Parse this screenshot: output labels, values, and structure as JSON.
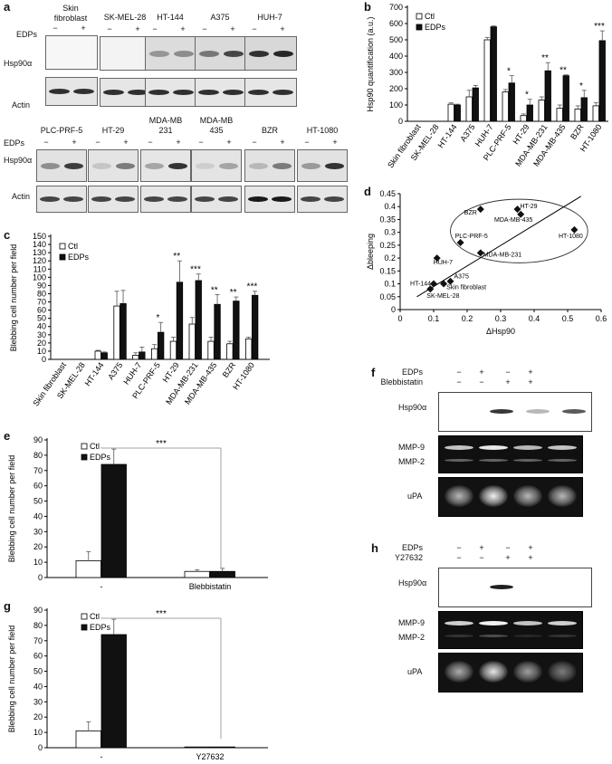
{
  "panel_a": {
    "letter": "a",
    "edps_label": "EDPs",
    "row_labels": {
      "hsp": "Hsp90α",
      "actin": "Actin"
    },
    "minus": "−",
    "plus": "+",
    "top_cells": [
      "Skin\nfibroblast",
      "SK-MEL-28",
      "HT-144",
      "A375",
      "HUH-7"
    ],
    "bottom_cells": [
      "PLC-PRF-5",
      "HT-29",
      "MDA-MB\n231",
      "MDA-MB\n435",
      "BZR",
      "HT-1080"
    ]
  },
  "panel_b": {
    "letter": "b",
    "ylabel": "Hsp90 quantification (a.u.)",
    "legend": [
      "Ctl",
      "EDPs"
    ]
  },
  "panel_c": {
    "letter": "c",
    "ylabel": "Blebbing cell number per field",
    "legend": [
      "Ctl",
      "EDPs"
    ]
  },
  "panel_d": {
    "letter": "d",
    "xlabel": "ΔHsp90",
    "ylabel": "Δbleeping"
  },
  "panel_e": {
    "letter": "e",
    "ylabel": "Blebbing cell number per field",
    "legend": [
      "Ctl",
      "EDPs"
    ],
    "sig": "***"
  },
  "panel_f": {
    "letter": "f",
    "treat_rows": [
      "EDPs",
      "Blebbistatin"
    ],
    "signs": [
      [
        "−",
        "+",
        "−",
        "+"
      ],
      [
        "−",
        "−",
        "+",
        "+"
      ]
    ],
    "blot_labels": [
      "Hsp90α",
      "MMP-9",
      "MMP-2",
      "uPA"
    ]
  },
  "panel_g": {
    "letter": "g",
    "ylabel": "Blebbing cell number per field",
    "legend": [
      "Ctl",
      "EDPs"
    ],
    "sig": "***"
  },
  "panel_h": {
    "letter": "h",
    "treat_rows": [
      "EDPs",
      "Y27632"
    ],
    "signs": [
      [
        "−",
        "+",
        "−",
        "+"
      ],
      [
        "−",
        "−",
        "+",
        "+"
      ]
    ],
    "blot_labels": [
      "Hsp90α",
      "MMP-9",
      "MMP-2",
      "uPA"
    ]
  },
  "chart_data": [
    {
      "panel": "b",
      "type": "bar",
      "title": "",
      "categories": [
        "Skin fibroblast",
        "SK-MEL-28",
        "HT-144",
        "A375",
        "HUH-7",
        "PLC-PRF-5",
        "HT-29",
        "MDA-MB-231",
        "MDA-MB-435",
        "BZR",
        "HT-1080"
      ],
      "series": [
        {
          "name": "Ctl",
          "values": [
            0,
            0,
            105,
            150,
            500,
            180,
            35,
            130,
            80,
            75,
            95
          ],
          "errors": [
            0,
            0,
            8,
            40,
            15,
            15,
            10,
            20,
            20,
            20,
            20
          ]
        },
        {
          "name": "EDPs",
          "values": [
            0,
            0,
            100,
            205,
            580,
            235,
            100,
            310,
            280,
            145,
            495
          ],
          "errors": [
            0,
            0,
            5,
            15,
            5,
            45,
            35,
            50,
            5,
            45,
            60
          ]
        }
      ],
      "significance": [
        "",
        "",
        "",
        "",
        "",
        "*",
        "*",
        "**",
        "**",
        "*",
        "***"
      ],
      "yticks": [
        0,
        100,
        200,
        300,
        400,
        500,
        600,
        700
      ],
      "ylim": [
        0,
        700
      ],
      "xlabel": "",
      "ylabel": "Hsp90 quantification (a.u.)",
      "legend_position": "top-left"
    },
    {
      "panel": "c",
      "type": "bar",
      "title": "",
      "categories": [
        "Skin fibroblast",
        "SK-MEL-28",
        "HT-144",
        "A375",
        "HUH-7",
        "PLC-PRF-5",
        "HT-29",
        "MDA-MB-231",
        "MDA-MB-435",
        "BZR",
        "HT-1080"
      ],
      "series": [
        {
          "name": "Ctl",
          "values": [
            0,
            0,
            10,
            65,
            5,
            13,
            22,
            43,
            22,
            19,
            25
          ],
          "errors": [
            0,
            0,
            1,
            18,
            3,
            5,
            5,
            8,
            5,
            3,
            2
          ]
        },
        {
          "name": "EDPs",
          "values": [
            0,
            0,
            8,
            68,
            9,
            33,
            94,
            96,
            67,
            71,
            78
          ],
          "errors": [
            0,
            0,
            1,
            16,
            6,
            12,
            26,
            8,
            12,
            5,
            5
          ]
        }
      ],
      "significance": [
        "",
        "",
        "",
        "",
        "",
        "*",
        "**",
        "***",
        "**",
        "**",
        "***"
      ],
      "yticks": [
        0,
        10,
        20,
        30,
        40,
        50,
        60,
        70,
        80,
        90,
        100,
        110,
        120,
        130,
        140,
        150
      ],
      "ylim": [
        0,
        150
      ],
      "xlabel": "",
      "ylabel": "Blebbing cell number per field",
      "legend_position": "top-left"
    },
    {
      "panel": "d",
      "type": "scatter",
      "title": "",
      "points": [
        {
          "label": "Skin fibroblast",
          "x": 0.13,
          "y": 0.1
        },
        {
          "label": "SK-MEL-28",
          "x": 0.09,
          "y": 0.08
        },
        {
          "label": "HT-144",
          "x": 0.1,
          "y": 0.1
        },
        {
          "label": "A375",
          "x": 0.15,
          "y": 0.11
        },
        {
          "label": "HUH-7",
          "x": 0.11,
          "y": 0.2
        },
        {
          "label": "PLC-PRF-5",
          "x": 0.18,
          "y": 0.26
        },
        {
          "label": "HT-29",
          "x": 0.35,
          "y": 0.39
        },
        {
          "label": "MDA-MB-231",
          "x": 0.24,
          "y": 0.22
        },
        {
          "label": "MDA-MB-435",
          "x": 0.36,
          "y": 0.37
        },
        {
          "label": "BZR",
          "x": 0.24,
          "y": 0.39
        },
        {
          "label": "HT-1080",
          "x": 0.52,
          "y": 0.31
        }
      ],
      "trendline": [
        [
          0.05,
          0.05
        ],
        [
          0.54,
          0.44
        ]
      ],
      "xlim": [
        0,
        0.6
      ],
      "ylim": [
        0,
        0.45
      ],
      "xticks": [
        0,
        0.1,
        0.2,
        0.3,
        0.4,
        0.5,
        0.6
      ],
      "yticks": [
        0,
        0.05,
        0.1,
        0.15,
        0.2,
        0.25,
        0.3,
        0.35,
        0.4,
        0.45
      ],
      "xlabel": "ΔHsp90",
      "ylabel": "Δbleeping"
    },
    {
      "panel": "e",
      "type": "bar",
      "title": "",
      "categories": [
        "-",
        "Blebbistatin"
      ],
      "series": [
        {
          "name": "Ctl",
          "values": [
            11,
            4
          ],
          "errors": [
            6,
            1
          ]
        },
        {
          "name": "EDPs",
          "values": [
            74,
            4
          ],
          "errors": [
            10,
            2
          ]
        }
      ],
      "yticks": [
        0,
        10,
        20,
        30,
        40,
        50,
        60,
        70,
        80,
        90
      ],
      "ylim": [
        0,
        90
      ],
      "ylabel": "Blebbing cell number per field",
      "legend_position": "top-left"
    },
    {
      "panel": "g",
      "type": "bar",
      "title": "",
      "categories": [
        "-",
        "Y27632"
      ],
      "series": [
        {
          "name": "Ctl",
          "values": [
            11,
            0.5
          ],
          "errors": [
            6,
            0
          ]
        },
        {
          "name": "EDPs",
          "values": [
            74,
            0.5
          ],
          "errors": [
            10,
            0
          ]
        }
      ],
      "yticks": [
        0,
        10,
        20,
        30,
        40,
        50,
        60,
        70,
        80,
        90
      ],
      "ylim": [
        0,
        90
      ],
      "ylabel": "Blebbing cell number per field",
      "legend_position": "top-left"
    }
  ]
}
